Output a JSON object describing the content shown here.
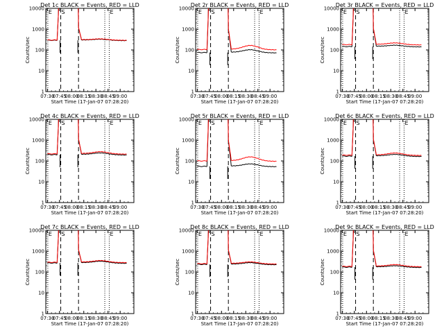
{
  "chart_data": {
    "type": "line",
    "layout": "3x3 grid",
    "x_axis": {
      "label": "Start Time (17-Jan-07 07:28:20)",
      "ticks": [
        "07:30",
        "07:45",
        "08:00",
        "08:15",
        "08:30",
        "08:45",
        "09:00"
      ],
      "range_minutes": [
        -2,
        107
      ]
    },
    "y_axis": {
      "label": "Counts/sec",
      "scale": "log",
      "ticks": [
        "1",
        "10",
        "100",
        "1000",
        "10000"
      ],
      "range": [
        1,
        10000
      ]
    },
    "series_colors": {
      "events": "#000000",
      "lld": "#ff0000"
    },
    "markers": [
      {
        "label": "E",
        "style": "dotted",
        "minute": 0.5
      },
      {
        "label": "S",
        "style": "dashed",
        "minute": 16.5
      },
      {
        "label": "",
        "style": "dashed",
        "minute": 38.5
      },
      {
        "label": "",
        "style": "dotted",
        "minute": 71
      },
      {
        "label": "E",
        "style": "dotted",
        "minute": 76.5
      }
    ],
    "panels": [
      {
        "title": "Det 1c BLACK = Events, RED = LLD",
        "events": 290,
        "lld": 300,
        "events_bump": 1.12,
        "lld_bump": 1.12
      },
      {
        "title": "Det 2r BLACK = Events, RED = LLD",
        "events": 75,
        "lld": 105,
        "events_bump": 1.35,
        "lld_bump": 1.55
      },
      {
        "title": "Det 3r BLACK = Events, RED = LLD",
        "events": 145,
        "lld": 180,
        "events_bump": 1.15,
        "lld_bump": 1.2
      },
      {
        "title": "Det 4c BLACK = Events, RED = LLD",
        "events": 200,
        "lld": 220,
        "events_bump": 1.2,
        "lld_bump": 1.25
      },
      {
        "title": "Det 5r BLACK = Events, RED = LLD",
        "events": 55,
        "lld": 100,
        "events_bump": 1.3,
        "lld_bump": 1.55
      },
      {
        "title": "Det 6c BLACK = Events, RED = LLD",
        "events": 170,
        "lld": 190,
        "events_bump": 1.2,
        "lld_bump": 1.25
      },
      {
        "title": "Det 7c BLACK = Events, RED = LLD",
        "events": 270,
        "lld": 290,
        "events_bump": 1.2,
        "lld_bump": 1.2
      },
      {
        "title": "Det 8c BLACK = Events, RED = LLD",
        "events": 230,
        "lld": 250,
        "events_bump": 1.2,
        "lld_bump": 1.2
      },
      {
        "title": "Det 9c BLACK = Events, RED = LLD",
        "events": 170,
        "lld": 185,
        "events_bump": 1.15,
        "lld_bump": 1.2
      }
    ]
  }
}
